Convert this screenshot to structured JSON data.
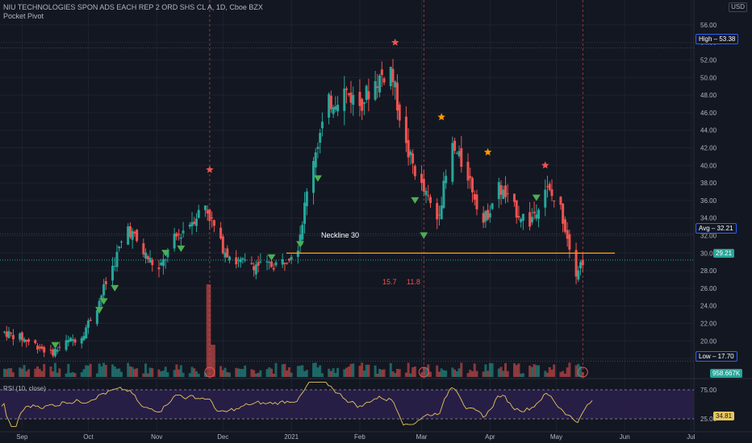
{
  "header": {
    "title": "NIU TECHNOLOGIES SPON ADS EACH REP 2 ORD SHS CL A, 1D, Cboe BZX",
    "indicator": "Pocket Pivot",
    "currency": "USD"
  },
  "price_tags": {
    "high_label": "High",
    "high_value": "53.38",
    "avg_label": "Avg",
    "avg_value": "32.21",
    "last_value": "29.21",
    "low_label": "Low",
    "low_value": "17.70",
    "volume_value": "958.667K",
    "rsi_value": "34.81"
  },
  "annotations": {
    "neckline": "Neckline 30",
    "measure_a": "15.7",
    "measure_b": "11.8"
  },
  "colors": {
    "up": "#26a69a",
    "down": "#ef5350",
    "neckline": "#ff9800",
    "rsi": "#e6c65c",
    "rsi_band": "#2a1f4a"
  },
  "chart_data": {
    "type": "candlestick",
    "title": "NIU TECHNOLOGIES SPON ADS EACH REP 2 ORD SHS CL A, 1D, Cboe BZX",
    "x_tick_labels": [
      "Sep",
      "Oct",
      "Nov",
      "Dec",
      "2021",
      "Feb",
      "Mar",
      "Apr",
      "May",
      "Jun",
      "Jul"
    ],
    "y_tick_labels": [
      "56.00",
      "54.00",
      "52.00",
      "50.00",
      "48.00",
      "46.00",
      "44.00",
      "42.00",
      "40.00",
      "38.00",
      "36.00",
      "34.00",
      "32.00",
      "30.00",
      "28.00",
      "26.00",
      "24.00",
      "22.00",
      "20.00",
      "18.00"
    ],
    "ylim": [
      17,
      57
    ],
    "close_path": [
      {
        "date": "2020-08-24",
        "price": 21.0
      },
      {
        "date": "2020-08-31",
        "price": 20.4
      },
      {
        "date": "2020-09-07",
        "price": 19.6
      },
      {
        "date": "2020-09-14",
        "price": 18.6
      },
      {
        "date": "2020-09-21",
        "price": 19.8
      },
      {
        "date": "2020-09-28",
        "price": 20.6
      },
      {
        "date": "2020-10-05",
        "price": 24.0
      },
      {
        "date": "2020-10-12",
        "price": 28.5
      },
      {
        "date": "2020-10-19",
        "price": 33.0
      },
      {
        "date": "2020-10-26",
        "price": 30.0
      },
      {
        "date": "2020-11-02",
        "price": 28.0
      },
      {
        "date": "2020-11-09",
        "price": 31.5
      },
      {
        "date": "2020-11-16",
        "price": 33.5
      },
      {
        "date": "2020-11-23",
        "price": 35.5
      },
      {
        "date": "2020-11-30",
        "price": 31.0
      },
      {
        "date": "2020-12-07",
        "price": 29.0
      },
      {
        "date": "2020-12-14",
        "price": 28.8
      },
      {
        "date": "2020-12-21",
        "price": 28.5
      },
      {
        "date": "2020-12-28",
        "price": 29.0
      },
      {
        "date": "2021-01-04",
        "price": 31.0
      },
      {
        "date": "2021-01-11",
        "price": 41.0
      },
      {
        "date": "2021-01-18",
        "price": 47.0
      },
      {
        "date": "2021-01-25",
        "price": 48.5
      },
      {
        "date": "2021-02-01",
        "price": 47.0
      },
      {
        "date": "2021-02-08",
        "price": 49.5
      },
      {
        "date": "2021-02-15",
        "price": 51.0
      },
      {
        "date": "2021-02-22",
        "price": 42.0
      },
      {
        "date": "2021-03-01",
        "price": 37.5
      },
      {
        "date": "2021-03-08",
        "price": 34.0
      },
      {
        "date": "2021-03-15",
        "price": 42.0
      },
      {
        "date": "2021-03-22",
        "price": 39.0
      },
      {
        "date": "2021-03-29",
        "price": 33.5
      },
      {
        "date": "2021-04-05",
        "price": 37.5
      },
      {
        "date": "2021-04-12",
        "price": 35.0
      },
      {
        "date": "2021-04-19",
        "price": 33.5
      },
      {
        "date": "2021-04-26",
        "price": 37.5
      },
      {
        "date": "2021-05-03",
        "price": 35.0
      },
      {
        "date": "2021-05-10",
        "price": 28.0
      },
      {
        "date": "2021-05-13",
        "price": 29.2
      }
    ],
    "neckline": {
      "price": 30,
      "label": "Neckline 30"
    },
    "pivot_markers_down": [
      {
        "date": "2020-09-16",
        "price": 19.5
      },
      {
        "date": "2020-10-06",
        "price": 23.5
      },
      {
        "date": "2020-10-08",
        "price": 24.5
      },
      {
        "date": "2020-10-13",
        "price": 26.0
      },
      {
        "date": "2020-11-05",
        "price": 30.0
      },
      {
        "date": "2020-11-12",
        "price": 30.5
      },
      {
        "date": "2020-12-23",
        "price": 29.5
      },
      {
        "date": "2021-01-05",
        "price": 31.0
      },
      {
        "date": "2021-01-13",
        "price": 38.5
      },
      {
        "date": "2021-02-26",
        "price": 36.0
      },
      {
        "date": "2021-03-02",
        "price": 32.0
      },
      {
        "date": "2021-04-22",
        "price": 36.3
      }
    ],
    "star_markers": [
      {
        "date": "2020-11-25",
        "price": 39.5,
        "color": "#ef5350"
      },
      {
        "date": "2021-02-17",
        "price": 54.0,
        "color": "#ef5350"
      },
      {
        "date": "2021-03-10",
        "price": 45.5,
        "color": "#ff9800"
      },
      {
        "date": "2021-03-31",
        "price": 41.5,
        "color": "#ff9800"
      },
      {
        "date": "2021-04-26",
        "price": 40.0,
        "color": "#ef5350"
      }
    ],
    "rsi": {
      "label": "RSI (10, close)",
      "ticks": [
        "75.00",
        "25.00"
      ],
      "last": 34.81
    },
    "volume": {
      "last": "958.667K"
    }
  }
}
